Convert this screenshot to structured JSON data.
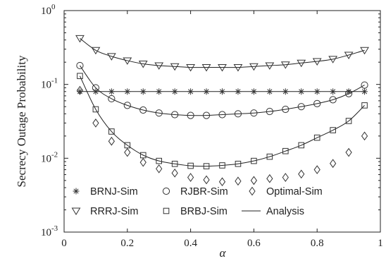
{
  "chart_data": {
    "type": "line",
    "xlabel": "α",
    "ylabel": "Secrecy Outage Probability",
    "xlim": [
      0,
      1
    ],
    "ylim": [
      0.001,
      1
    ],
    "yscale": "log",
    "grid": false,
    "legend_position": "bottom-inside",
    "x_ticks": [
      {
        "value": 0,
        "label": "0"
      },
      {
        "value": 0.2,
        "label": "0.2"
      },
      {
        "value": 0.4,
        "label": "0.4"
      },
      {
        "value": 0.6,
        "label": "0.6"
      },
      {
        "value": 0.8,
        "label": "0.8"
      },
      {
        "value": 1,
        "label": "1"
      }
    ],
    "y_ticks": [
      {
        "value": 1,
        "base": "10",
        "exp": "0"
      },
      {
        "value": 0.1,
        "base": "10",
        "exp": "-1"
      },
      {
        "value": 0.01,
        "base": "10",
        "exp": "-2"
      },
      {
        "value": 0.001,
        "base": "10",
        "exp": "-3"
      }
    ],
    "x": [
      0.05,
      0.1,
      0.15,
      0.2,
      0.25,
      0.3,
      0.35,
      0.4,
      0.45,
      0.5,
      0.55,
      0.6,
      0.65,
      0.7,
      0.75,
      0.8,
      0.85,
      0.9,
      0.95
    ],
    "series": [
      {
        "name": "BRNJ-Sim",
        "marker": "asterisk",
        "line": false,
        "values": [
          0.08,
          0.08,
          0.08,
          0.08,
          0.08,
          0.08,
          0.08,
          0.08,
          0.08,
          0.08,
          0.08,
          0.08,
          0.08,
          0.08,
          0.08,
          0.08,
          0.08,
          0.08,
          0.08
        ]
      },
      {
        "name": "RRRJ-Sim",
        "marker": "triangle-down",
        "line": false,
        "values": [
          0.42,
          0.29,
          0.24,
          0.21,
          0.19,
          0.18,
          0.175,
          0.17,
          0.17,
          0.17,
          0.17,
          0.175,
          0.18,
          0.185,
          0.195,
          0.205,
          0.22,
          0.25,
          0.29
        ]
      },
      {
        "name": "RJBR-Sim",
        "marker": "circle",
        "line": false,
        "values": [
          0.18,
          0.09,
          0.064,
          0.052,
          0.045,
          0.041,
          0.039,
          0.038,
          0.038,
          0.039,
          0.04,
          0.041,
          0.043,
          0.046,
          0.05,
          0.055,
          0.062,
          0.075,
          0.098
        ]
      },
      {
        "name": "BRBJ-Sim",
        "marker": "square",
        "line": false,
        "values": [
          0.13,
          0.046,
          0.023,
          0.015,
          0.011,
          0.0092,
          0.0084,
          0.0079,
          0.0078,
          0.008,
          0.0084,
          0.0092,
          0.0105,
          0.0125,
          0.015,
          0.019,
          0.024,
          0.032,
          0.052
        ]
      },
      {
        "name": "Optimal-Sim",
        "marker": "diamond",
        "line": false,
        "values": [
          0.083,
          0.03,
          0.017,
          0.012,
          0.0088,
          0.0072,
          0.0063,
          0.0055,
          0.0051,
          0.0048,
          0.0049,
          0.005,
          0.0053,
          0.0055,
          0.0061,
          0.007,
          0.0085,
          0.012,
          0.02
        ]
      },
      {
        "name": "Analysis",
        "marker": "none",
        "line": true,
        "curves": [
          [
            0.08,
            0.08,
            0.08,
            0.08,
            0.08,
            0.08,
            0.08,
            0.08,
            0.08,
            0.08,
            0.08,
            0.08,
            0.08,
            0.08,
            0.08,
            0.08,
            0.08,
            0.08,
            0.08
          ],
          [
            0.42,
            0.29,
            0.24,
            0.21,
            0.19,
            0.18,
            0.175,
            0.17,
            0.17,
            0.17,
            0.17,
            0.175,
            0.18,
            0.185,
            0.195,
            0.205,
            0.22,
            0.25,
            0.29
          ],
          [
            0.18,
            0.09,
            0.064,
            0.052,
            0.045,
            0.041,
            0.039,
            0.038,
            0.038,
            0.039,
            0.04,
            0.041,
            0.043,
            0.046,
            0.05,
            0.055,
            0.062,
            0.075,
            0.098
          ],
          [
            0.13,
            0.046,
            0.023,
            0.015,
            0.011,
            0.0092,
            0.0084,
            0.0079,
            0.0078,
            0.008,
            0.0084,
            0.0092,
            0.0105,
            0.0125,
            0.015,
            0.019,
            0.024,
            0.032,
            0.052
          ]
        ]
      }
    ],
    "legend": [
      {
        "label": "BRNJ-Sim",
        "marker": "asterisk"
      },
      {
        "label": "RJBR-Sim",
        "marker": "circle"
      },
      {
        "label": "Optimal-Sim",
        "marker": "diamond"
      },
      {
        "label": "RRRJ-Sim",
        "marker": "triangle-down"
      },
      {
        "label": "BRBJ-Sim",
        "marker": "square"
      },
      {
        "label": "Analysis",
        "marker": "line"
      }
    ]
  }
}
